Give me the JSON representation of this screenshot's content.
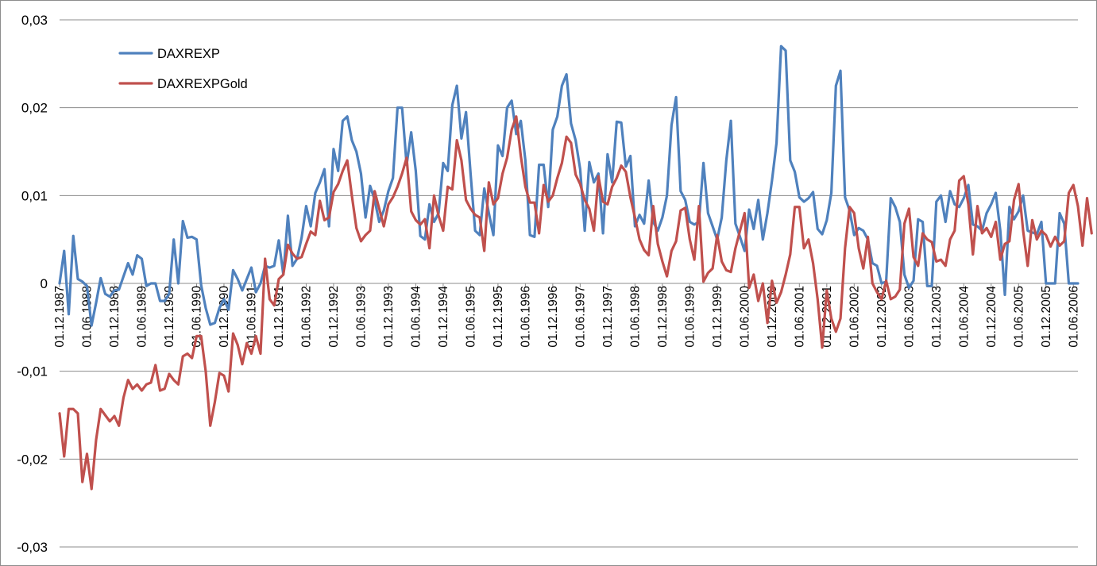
{
  "chart_data": {
    "type": "line",
    "title": "",
    "xlabel": "",
    "ylabel": "",
    "ylim": [
      -0.03,
      0.03
    ],
    "y_ticks": [
      "0,03",
      "0,02",
      "0,01",
      "0",
      "-0,01",
      "-0,02",
      "-0,03"
    ],
    "y_tick_values": [
      0.03,
      0.02,
      0.01,
      0,
      -0.01,
      -0.02,
      -0.03
    ],
    "grid": "horizontal",
    "legend_position": "top-left",
    "x_start": "01.12.1987",
    "x_frequency": "monthly",
    "x_tick_labels": [
      "01.12.1987",
      "01.06.1988",
      "01.12.1988",
      "01.06.1989",
      "01.12.1989",
      "01.06.1990",
      "01.12.1990",
      "01.06.1991",
      "01.12.1991",
      "01.06.1992",
      "01.12.1992",
      "01.06.1993",
      "01.12.1993",
      "01.06.1994",
      "01.12.1994",
      "01.06.1995",
      "01.12.1995",
      "01.06.1996",
      "01.12.1996",
      "01.06.1997",
      "01.12.1997",
      "01.06.1998",
      "01.12.1998",
      "01.06.1999",
      "01.12.1999",
      "01.06.2000",
      "01.12.2000",
      "01.06.2001",
      "01.12.2001",
      "01.06.2002",
      "01.12.2002",
      "01.06.2003",
      "01.12.2003",
      "01.06.2004",
      "01.12.2004",
      "01.06.2005",
      "01.12.2005",
      "01.06.2006"
    ],
    "series": [
      {
        "name": "DAXREXP",
        "color": "#4f81bd",
        "values": [
          0.0,
          0.0037,
          -0.0035,
          0.0054,
          0.0005,
          0.0002,
          -0.0003,
          -0.0048,
          -0.0022,
          0.0006,
          -0.0012,
          -0.0015,
          -0.0008,
          -0.0007,
          0.0008,
          0.0023,
          0.001,
          0.0032,
          0.0028,
          -0.0003,
          0.0,
          0.0,
          -0.002,
          -0.002,
          -0.0012,
          0.005,
          0.0,
          0.0071,
          0.0052,
          0.0053,
          0.005,
          -0.0002,
          -0.0028,
          -0.0047,
          -0.0045,
          -0.0028,
          -0.0018,
          -0.003,
          0.0015,
          0.0005,
          -0.0008,
          0.0005,
          0.0018,
          -0.001,
          0.0,
          0.002,
          0.0018,
          0.002,
          0.0049,
          0.001,
          0.0077,
          0.002,
          0.0028,
          0.0052,
          0.0088,
          0.0065,
          0.0103,
          0.0115,
          0.013,
          0.0065,
          0.0153,
          0.0128,
          0.0185,
          0.019,
          0.0163,
          0.015,
          0.0125,
          0.0075,
          0.0111,
          0.0095,
          0.007,
          0.0083,
          0.0105,
          0.012,
          0.02,
          0.02,
          0.0135,
          0.0172,
          0.0128,
          0.0054,
          0.005,
          0.009,
          0.007,
          0.008,
          0.0137,
          0.0128,
          0.0203,
          0.0225,
          0.0165,
          0.0195,
          0.0125,
          0.006,
          0.0055,
          0.0108,
          0.008,
          0.0055,
          0.0157,
          0.0145,
          0.02,
          0.0208,
          0.017,
          0.0185,
          0.014,
          0.0055,
          0.0053,
          0.0135,
          0.0135,
          0.0087,
          0.0175,
          0.019,
          0.0225,
          0.0238,
          0.0182,
          0.0163,
          0.013,
          0.006,
          0.0138,
          0.0115,
          0.0125,
          0.0057,
          0.0147,
          0.0115,
          0.0184,
          0.0183,
          0.0133,
          0.0145,
          0.0065,
          0.0078,
          0.0068,
          0.0117,
          0.007,
          0.006,
          0.0075,
          0.01,
          0.018,
          0.0212,
          0.0105,
          0.0095,
          0.007,
          0.0067,
          0.007,
          0.0137,
          0.008,
          0.0065,
          0.005,
          0.0075,
          0.014,
          0.0185,
          0.0068,
          0.0053,
          0.0037,
          0.0084,
          0.0062,
          0.0095,
          0.005,
          0.008,
          0.0117,
          0.016,
          0.027,
          0.0265,
          0.014,
          0.0127,
          0.0098,
          0.0093,
          0.0097,
          0.0104,
          0.0062,
          0.0056,
          0.0072,
          0.0103,
          0.0225,
          0.0242,
          0.0098,
          0.0083,
          0.0055,
          0.0063,
          0.006,
          0.005,
          0.0023,
          0.002,
          0.0,
          0.0002,
          0.0097,
          0.0087,
          0.007,
          0.001,
          -0.0005,
          0.0003,
          0.0073,
          0.007,
          -0.0003,
          -0.0003,
          0.0093,
          0.01,
          0.007,
          0.0105,
          0.009,
          0.0087,
          0.0097,
          0.0112,
          0.0067,
          0.0065,
          0.006,
          0.008,
          0.009,
          0.0103,
          0.006,
          -0.0013,
          0.0087,
          0.0073,
          0.0082,
          0.01,
          0.006,
          0.0058,
          0.0056,
          0.007,
          0.0,
          0.0,
          0.0,
          0.008,
          0.0068,
          0.0,
          0.0,
          0.0
        ]
      },
      {
        "name": "DAXREXPGold",
        "color": "#c0504d",
        "values": [
          -0.0148,
          -0.0197,
          -0.0143,
          -0.0143,
          -0.0148,
          -0.0226,
          -0.0194,
          -0.0234,
          -0.0178,
          -0.0143,
          -0.015,
          -0.0157,
          -0.0151,
          -0.0162,
          -0.013,
          -0.011,
          -0.012,
          -0.0115,
          -0.0122,
          -0.0115,
          -0.0113,
          -0.0093,
          -0.0122,
          -0.012,
          -0.0103,
          -0.011,
          -0.0115,
          -0.0083,
          -0.008,
          -0.0085,
          -0.006,
          -0.006,
          -0.01,
          -0.0162,
          -0.0135,
          -0.0102,
          -0.0105,
          -0.0123,
          -0.0057,
          -0.007,
          -0.0092,
          -0.0068,
          -0.008,
          -0.006,
          -0.008,
          0.0028,
          -0.0018,
          -0.0025,
          0.0005,
          0.001,
          0.0044,
          0.0034,
          0.0028,
          0.003,
          0.0045,
          0.0059,
          0.0055,
          0.0094,
          0.0072,
          0.0075,
          0.0104,
          0.0113,
          0.0128,
          0.014,
          0.01,
          0.0063,
          0.0048,
          0.0055,
          0.006,
          0.0105,
          0.0085,
          0.0065,
          0.009,
          0.0098,
          0.011,
          0.0125,
          0.0143,
          0.0082,
          0.0072,
          0.0067,
          0.0073,
          0.004,
          0.01,
          0.0077,
          0.006,
          0.011,
          0.0107,
          0.0163,
          0.014,
          0.0095,
          0.0085,
          0.0078,
          0.0075,
          0.0037,
          0.0115,
          0.009,
          0.0097,
          0.0125,
          0.0143,
          0.0175,
          0.019,
          0.0145,
          0.011,
          0.0092,
          0.0092,
          0.0057,
          0.0112,
          0.0093,
          0.01,
          0.012,
          0.0137,
          0.0167,
          0.016,
          0.0124,
          0.0113,
          0.0095,
          0.0085,
          0.006,
          0.0122,
          0.0093,
          0.009,
          0.011,
          0.012,
          0.0134,
          0.0127,
          0.0098,
          0.0075,
          0.005,
          0.0038,
          0.0032,
          0.0088,
          0.0045,
          0.0025,
          0.0008,
          0.0037,
          0.0048,
          0.0083,
          0.0086,
          0.005,
          0.0027,
          0.0088,
          0.0002,
          0.0012,
          0.0017,
          0.0055,
          0.0025,
          0.0015,
          0.0013,
          0.004,
          0.006,
          0.008,
          -0.0005,
          0.001,
          -0.002,
          0.0,
          -0.0045,
          0.0003,
          -0.0022,
          -0.001,
          0.001,
          0.0033,
          0.0087,
          0.0087,
          0.004,
          0.005,
          0.0023,
          -0.0018,
          -0.0073,
          -0.0008,
          -0.004,
          -0.0055,
          -0.004,
          0.004,
          0.0087,
          0.008,
          0.004,
          0.0017,
          0.0053,
          0.0,
          -0.001,
          -0.0018,
          0.0003,
          -0.0018,
          -0.0015,
          -0.0007,
          0.0068,
          0.0085,
          0.003,
          0.002,
          0.0057,
          0.005,
          0.0047,
          0.0025,
          0.0027,
          0.002,
          0.005,
          0.006,
          0.0117,
          0.0122,
          0.009,
          0.0033,
          0.0088,
          0.0057,
          0.0063,
          0.0053,
          0.007,
          0.0027,
          0.0045,
          0.0048,
          0.0095,
          0.0113,
          0.006,
          0.002,
          0.0072,
          0.005,
          0.006,
          0.0055,
          0.0042,
          0.0053,
          0.0043,
          0.0048,
          0.0103,
          0.0112,
          0.0088,
          0.0043,
          0.0097,
          0.0057
        ]
      }
    ]
  }
}
